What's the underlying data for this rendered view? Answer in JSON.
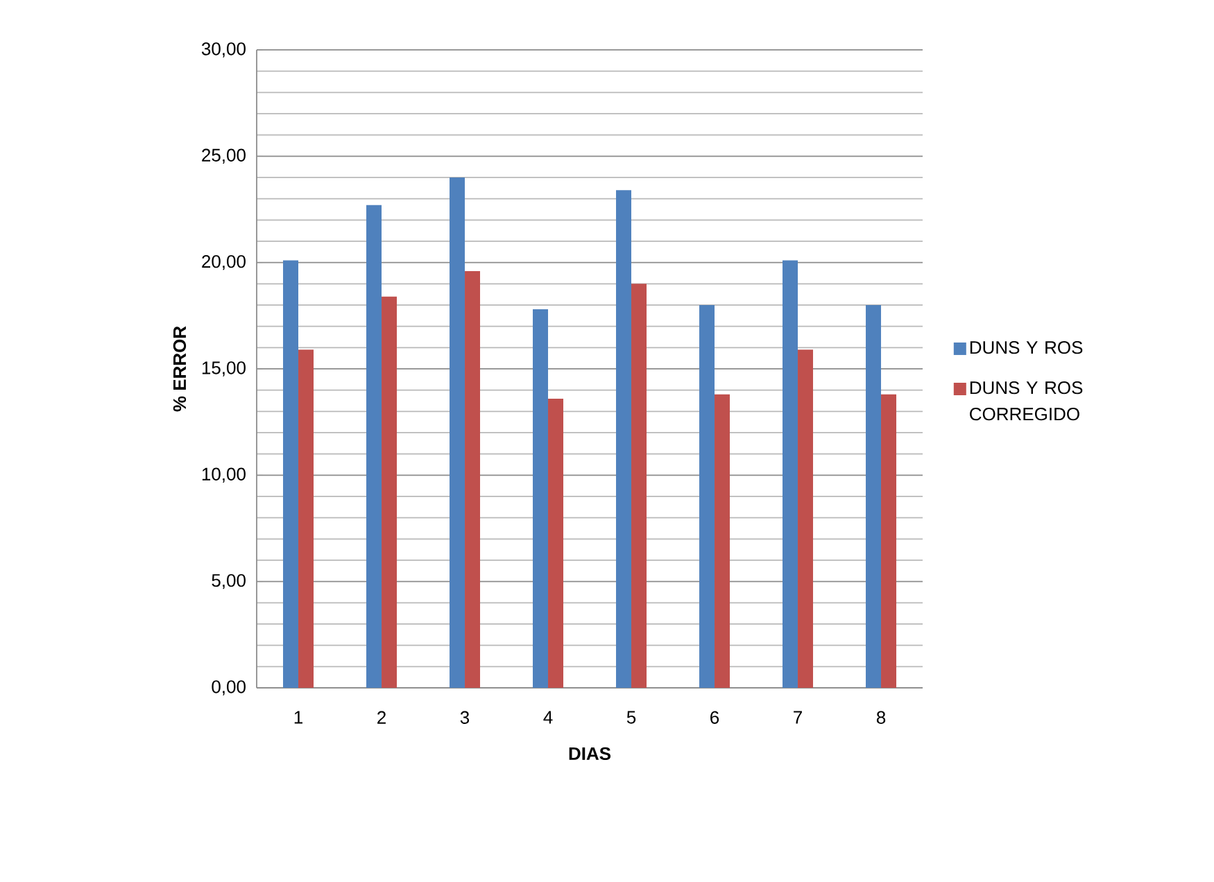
{
  "chart_data": {
    "type": "bar",
    "xlabel": "DIAS",
    "ylabel": "% ERROR",
    "categories": [
      "1",
      "2",
      "3",
      "4",
      "5",
      "6",
      "7",
      "8"
    ],
    "series": [
      {
        "name": "DUNS Y ROS",
        "color": "#4f81bd",
        "values": [
          20.1,
          22.7,
          24.0,
          17.8,
          23.4,
          18.0,
          20.1,
          18.0
        ]
      },
      {
        "name": "DUNS Y ROS CORREGIDO",
        "color": "#c0504d",
        "values": [
          15.9,
          18.4,
          19.6,
          13.6,
          19.0,
          13.8,
          15.9,
          13.8
        ]
      }
    ],
    "ylim": [
      0,
      30
    ],
    "yticks": [
      {
        "value": 0,
        "label": "0,00"
      },
      {
        "value": 5,
        "label": "5,00"
      },
      {
        "value": 10,
        "label": "10,00"
      },
      {
        "value": 15,
        "label": "15,00"
      },
      {
        "value": 20,
        "label": "20,00"
      },
      {
        "value": 25,
        "label": "25,00"
      },
      {
        "value": 30,
        "label": "30,00"
      }
    ],
    "grid": "y",
    "legend": "right"
  }
}
